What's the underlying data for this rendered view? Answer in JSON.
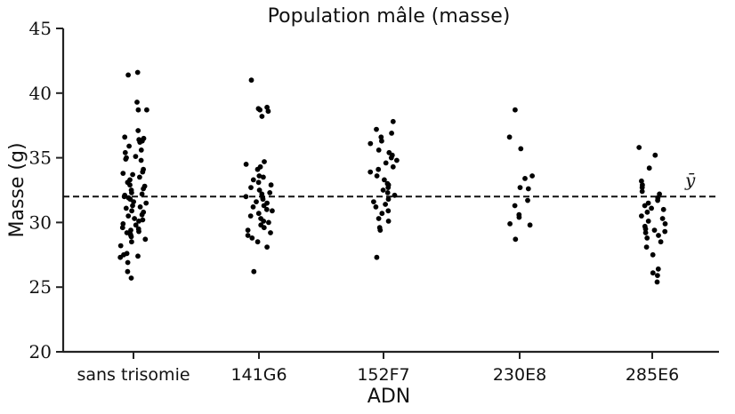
{
  "chart_data": {
    "type": "scatter",
    "title": "Population mâle (masse)",
    "xlabel": "ADN",
    "ylabel": "Masse (g)",
    "ylim": [
      20,
      45
    ],
    "yticks": [
      "20",
      "25",
      "30",
      "35",
      "40",
      "45"
    ],
    "categories": [
      "sans trisomie",
      "141G6",
      "152F7",
      "230E8",
      "285E6"
    ],
    "mean_line": {
      "value": 32.0,
      "label": "ȳ",
      "style": "dashed"
    },
    "grid": false,
    "series": [
      {
        "category": "sans trisomie",
        "values": [
          41.6,
          41.4,
          39.3,
          38.7,
          38.7,
          37.1,
          36.6,
          36.5,
          36.4,
          36.3,
          36.2,
          35.9,
          35.6,
          35.4,
          35.1,
          35.0,
          34.9,
          34.8,
          34.1,
          33.9,
          33.8,
          33.7,
          33.5,
          33.3,
          33.1,
          32.9,
          32.8,
          32.6,
          32.5,
          32.3,
          32.2,
          32.1,
          32.0,
          31.9,
          31.8,
          31.6,
          31.5,
          31.3,
          31.2,
          31.1,
          30.9,
          30.8,
          30.6,
          30.5,
          30.3,
          30.2,
          30.1,
          29.9,
          29.8,
          29.6,
          29.5,
          29.4,
          29.3,
          29.2,
          29.1,
          29.0,
          28.9,
          28.7,
          28.5,
          28.2,
          27.6,
          27.5,
          27.4,
          27.3,
          26.9,
          26.2,
          25.7
        ]
      },
      {
        "category": "141G6",
        "values": [
          41.0,
          38.9,
          38.8,
          38.7,
          38.6,
          38.2,
          34.7,
          34.5,
          34.3,
          34.1,
          33.6,
          33.5,
          33.3,
          33.1,
          32.9,
          32.7,
          32.5,
          32.3,
          32.2,
          32.0,
          31.9,
          31.8,
          31.6,
          31.5,
          31.3,
          31.2,
          31.0,
          30.9,
          30.7,
          30.5,
          30.3,
          30.1,
          30.0,
          29.8,
          29.6,
          29.4,
          29.2,
          29.0,
          28.8,
          28.5,
          28.1,
          26.2
        ]
      },
      {
        "category": "152F7",
        "values": [
          37.8,
          37.2,
          36.9,
          36.6,
          36.3,
          36.1,
          35.6,
          35.4,
          35.2,
          35.0,
          34.8,
          34.6,
          34.3,
          34.1,
          33.9,
          33.6,
          33.3,
          33.0,
          32.9,
          32.7,
          32.5,
          32.3,
          32.1,
          31.8,
          31.6,
          31.4,
          31.2,
          30.9,
          30.7,
          30.3,
          30.1,
          29.6,
          29.4,
          27.3
        ]
      },
      {
        "category": "230E8",
        "values": [
          38.7,
          36.6,
          35.7,
          33.6,
          33.4,
          32.7,
          32.6,
          31.7,
          31.3,
          30.6,
          30.4,
          29.9,
          29.8,
          28.7
        ]
      },
      {
        "category": "285E6",
        "values": [
          35.8,
          35.2,
          34.2,
          33.2,
          32.9,
          32.7,
          32.4,
          32.2,
          31.9,
          31.7,
          31.5,
          31.3,
          31.1,
          31.0,
          30.8,
          30.5,
          30.3,
          30.1,
          29.9,
          29.7,
          29.5,
          29.4,
          29.3,
          29.2,
          29.0,
          28.8,
          28.5,
          28.1,
          27.5,
          26.4,
          26.1,
          25.9,
          25.4
        ]
      }
    ]
  }
}
